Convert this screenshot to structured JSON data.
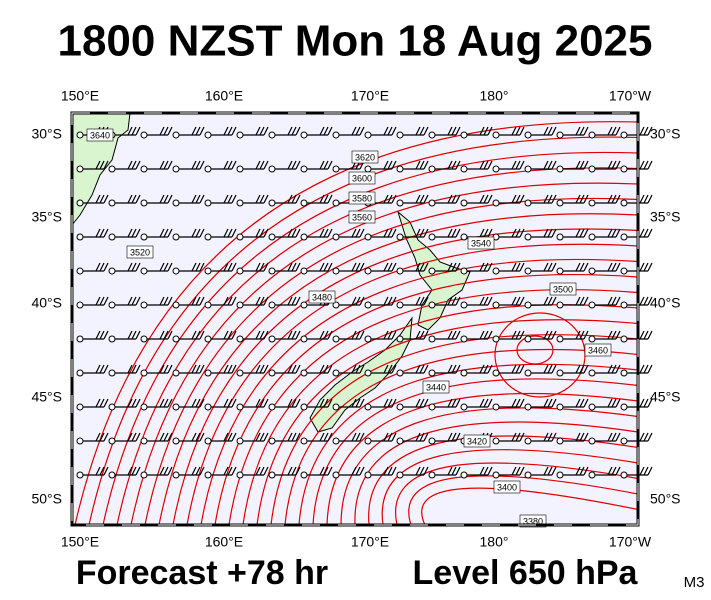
{
  "title": "1800 NZST Mon 18 Aug 2025",
  "footer": {
    "forecast": "Forecast +78 hr",
    "level": "Level 650 hPa",
    "code": "M3"
  },
  "axes": {
    "top": [
      "150°E",
      "160°E",
      "170°E",
      "180°",
      "170°W"
    ],
    "bottom": [
      "150°E",
      "160°E",
      "170°E",
      "180°",
      "170°W"
    ],
    "left": [
      "30°S",
      "35°S",
      "40°S",
      "45°S",
      "50°S"
    ],
    "right": [
      "30°S",
      "35°S",
      "40°S",
      "45°S",
      "50°S"
    ]
  },
  "contour_labels": [
    "3640",
    "3620",
    "3600",
    "3580",
    "3560",
    "3540",
    "3520",
    "3500",
    "3480",
    "3460",
    "3440",
    "3420",
    "3400",
    "3380"
  ]
}
